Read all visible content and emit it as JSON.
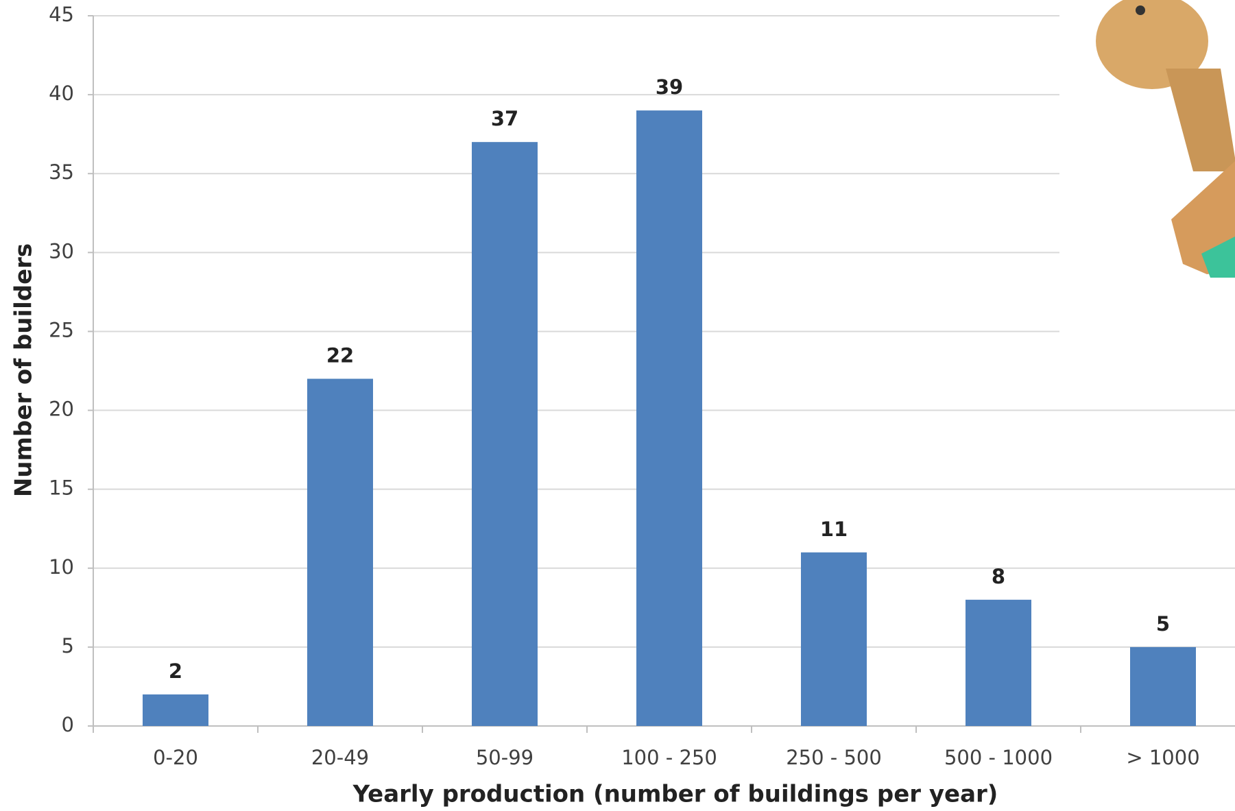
{
  "chart_data": {
    "type": "bar",
    "x_label": "Yearly production (number of buildings per year)",
    "y_label": "Number of builders",
    "categories": [
      "0-20",
      "20-49",
      "50-99",
      "100 - 250",
      "250 - 500",
      "500 - 1000",
      "> 1000"
    ],
    "values": [
      2,
      22,
      37,
      39,
      11,
      8,
      5
    ],
    "color": "#4f81bd",
    "ylim": [
      0,
      45
    ],
    "yticks": [
      0,
      5,
      10,
      15,
      20,
      25,
      30,
      35,
      40,
      45
    ],
    "grid": true
  }
}
